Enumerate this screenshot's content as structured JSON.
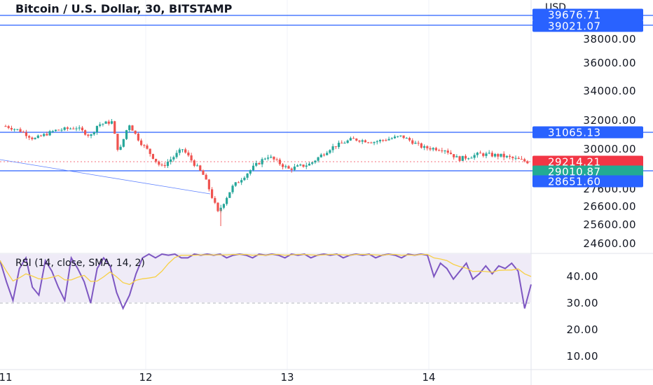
{
  "header": {
    "title": "Bitcoin / U.S. Dollar, 30, BITSTAMP",
    "currency": "USD"
  },
  "price_axis": {
    "ticks": [
      "38000.00",
      "36000.00",
      "34000.00",
      "32000.00",
      "30000.00",
      "27600.00",
      "26600.00",
      "25600.00",
      "24600.00"
    ]
  },
  "badges": {
    "level_1": "39676.71",
    "level_2": "39021.07",
    "level_3": "31065.13",
    "last_price": "29214.21",
    "level_4": "29010.87",
    "level_5": "28651.60"
  },
  "rsi": {
    "label": "RSI (14, close, SMA, 14, 2)",
    "ticks": [
      "40.00",
      "30.00",
      "20.00",
      "10.00"
    ]
  },
  "time_axis": {
    "ticks": [
      "11",
      "12",
      "13",
      "14"
    ]
  },
  "colors": {
    "up": "#26a69a",
    "down": "#ef5350",
    "level_line": "#2962ff",
    "badge_blue": "#2962ff",
    "badge_red": "#f23645",
    "badge_green": "#22ab94",
    "rsi_line": "#7e57c2",
    "rsi_ma": "#f7d046",
    "rsi_band": "#efebf7"
  },
  "chart_data": {
    "type": "candlestick",
    "symbol": "Bitcoin / U.S. Dollar",
    "interval": "30",
    "exchange": "BITSTAMP",
    "x_ticks": [
      "11",
      "12",
      "13",
      "14"
    ],
    "horizontal_levels": [
      39676.71,
      39021.07,
      31065.13,
      29010.87,
      28651.6
    ],
    "last_price": 29214.21,
    "close_path": [
      {
        "day": 11.0,
        "close": 31600
      },
      {
        "day": 11.1,
        "close": 31300
      },
      {
        "day": 11.2,
        "close": 30700
      },
      {
        "day": 11.35,
        "close": 31300
      },
      {
        "day": 11.5,
        "close": 31500
      },
      {
        "day": 11.6,
        "close": 30900
      },
      {
        "day": 11.65,
        "close": 31700
      },
      {
        "day": 11.75,
        "close": 31900
      },
      {
        "day": 11.8,
        "close": 29700
      },
      {
        "day": 11.87,
        "close": 31800
      },
      {
        "day": 11.95,
        "close": 30500
      },
      {
        "day": 12.1,
        "close": 28900
      },
      {
        "day": 12.25,
        "close": 30000
      },
      {
        "day": 12.4,
        "close": 28400
      },
      {
        "day": 12.5,
        "close": 26300
      },
      {
        "day": 12.6,
        "close": 27700
      },
      {
        "day": 12.75,
        "close": 28900
      },
      {
        "day": 12.85,
        "close": 29600
      },
      {
        "day": 13.0,
        "close": 28800
      },
      {
        "day": 13.15,
        "close": 29100
      },
      {
        "day": 13.3,
        "close": 30100
      },
      {
        "day": 13.45,
        "close": 30700
      },
      {
        "day": 13.6,
        "close": 30500
      },
      {
        "day": 13.8,
        "close": 30900
      },
      {
        "day": 13.95,
        "close": 30100
      },
      {
        "day": 14.1,
        "close": 30000
      },
      {
        "day": 14.2,
        "close": 29400
      },
      {
        "day": 14.35,
        "close": 29700
      },
      {
        "day": 14.5,
        "close": 29600
      },
      {
        "day": 14.7,
        "close": 29214
      }
    ],
    "rsi": {
      "name": "RSI (14, close, SMA, 14, 2)",
      "y_ticks": [
        40,
        30,
        20,
        10
      ],
      "reference_level": 30,
      "values": [
        46,
        38,
        31,
        43,
        47,
        36,
        33,
        46,
        42,
        36,
        31,
        47,
        43,
        38,
        30,
        43,
        47,
        44,
        34,
        28,
        33,
        41,
        47,
        49,
        47,
        49,
        48,
        49,
        47,
        47,
        49,
        48,
        49,
        48,
        49,
        47,
        48,
        49,
        48,
        47,
        49,
        48,
        49,
        48,
        47,
        49,
        48,
        49,
        47,
        48,
        49,
        48,
        49,
        47,
        48,
        49,
        48,
        49,
        47,
        48,
        49,
        48,
        47,
        49,
        48,
        49,
        48,
        40,
        45,
        43,
        39,
        42,
        45,
        39,
        41,
        44,
        41,
        44,
        43,
        45,
        42,
        28,
        37
      ]
    }
  }
}
